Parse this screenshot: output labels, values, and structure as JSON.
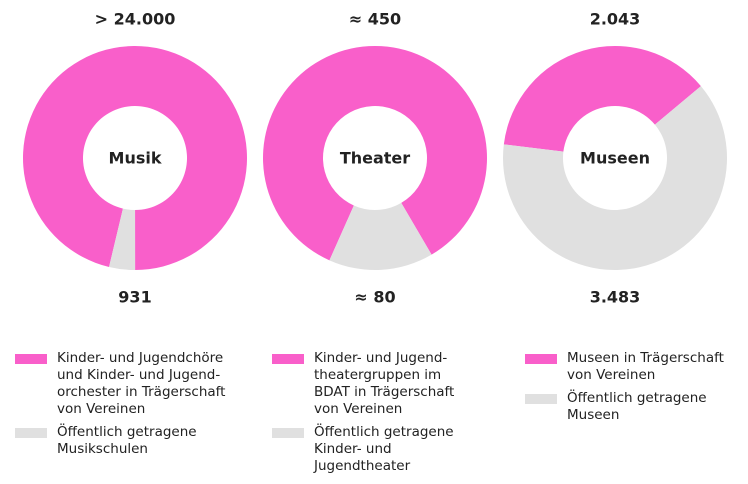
{
  "chart_data": [
    {
      "type": "pie",
      "title": "Musik",
      "categories": [
        "Kinder- und Jugendchöre\nund Kinder- und Jugend-\norchester in Trägerschaft\nvon Vereinen",
        "Öffentlich getragene\nMusikschulen"
      ],
      "values": [
        24000,
        931
      ],
      "value_labels": [
        "> 24.000",
        "931"
      ],
      "colors": [
        "#f95fca",
        "#e0e0e0"
      ]
    },
    {
      "type": "pie",
      "title": "Theater",
      "categories": [
        "Kinder- und Jugend-\ntheatergruppen im\nBDAT in Trägerschaft\nvon Vereinen",
        "Öffentlich getragene\nKinder- und\nJugendtheater"
      ],
      "values": [
        450,
        80
      ],
      "value_labels": [
        "≈ 450",
        "≈ 80"
      ],
      "colors": [
        "#f95fca",
        "#e0e0e0"
      ]
    },
    {
      "type": "pie",
      "title": "Museen",
      "categories": [
        "Museen in Trägerschaft\nvon Vereinen",
        "Öffentlich getragene\nMuseen"
      ],
      "values": [
        2043,
        3483
      ],
      "value_labels": [
        "2.043",
        "3.483"
      ],
      "colors": [
        "#f95fca",
        "#e0e0e0"
      ]
    }
  ]
}
